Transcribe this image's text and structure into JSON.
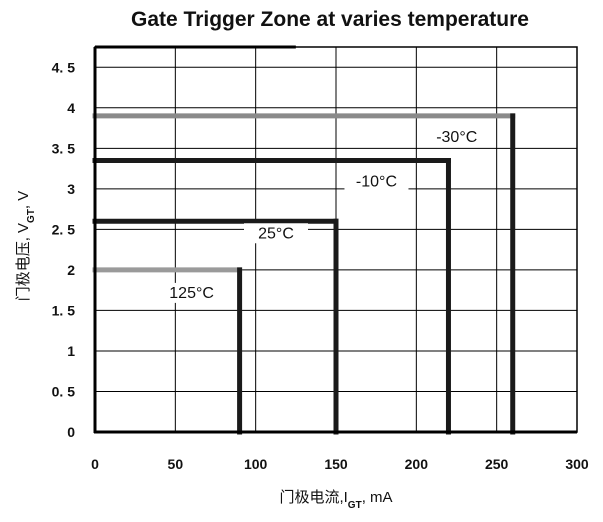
{
  "chart_data": {
    "type": "line",
    "title": "Gate Trigger Zone at varies temperature",
    "xlabel": "门极电流,I_GT,  mA",
    "xlabel_parts": {
      "prefix": "门极电流,I",
      "sub": "GT",
      "suffix": ",  mA"
    },
    "ylabel": "门极电压, V_GT,  V",
    "ylabel_parts": {
      "prefix": "门极电压, V",
      "sub": "GT",
      "suffix": ",  V"
    },
    "xlim": [
      0,
      300
    ],
    "ylim": [
      0,
      4.75
    ],
    "x_ticks": [
      0,
      50,
      100,
      150,
      200,
      250,
      300
    ],
    "x_tick_labels": [
      "0",
      "50",
      "100",
      "150",
      "200",
      "250",
      "300"
    ],
    "y_ticks": [
      0,
      0.5,
      1,
      1.5,
      2,
      2.5,
      3,
      3.5,
      4,
      4.5
    ],
    "y_tick_labels": [
      "0",
      "0. 5",
      "1",
      "1. 5",
      "2",
      "2. 5",
      "3",
      "3. 5",
      "4",
      "4. 5"
    ],
    "grid": true,
    "legend": "none",
    "series": [
      {
        "name": "125°C",
        "igt_max": 90,
        "vgt_max": 2.0,
        "points": [
          [
            0,
            2.0
          ],
          [
            90,
            2.0
          ],
          [
            90,
            0
          ]
        ],
        "color": "#1a1a1a",
        "top_color": "#9a9a9a"
      },
      {
        "name": "25°C",
        "igt_max": 150,
        "vgt_max": 2.6,
        "points": [
          [
            0,
            2.6
          ],
          [
            150,
            2.6
          ],
          [
            150,
            0
          ]
        ],
        "color": "#1a1a1a",
        "top_color": "#1a1a1a"
      },
      {
        "name": "-10°C",
        "igt_max": 220,
        "vgt_max": 3.35,
        "points": [
          [
            0,
            3.35
          ],
          [
            220,
            3.35
          ],
          [
            220,
            0
          ]
        ],
        "color": "#1a1a1a",
        "top_color": "#1a1a1a"
      },
      {
        "name": "-30°C",
        "igt_max": 260,
        "vgt_max": 3.9,
        "points": [
          [
            0,
            3.9
          ],
          [
            260,
            3.9
          ],
          [
            260,
            0
          ]
        ],
        "color": "#1a1a1a",
        "top_color": "#8a8a8a"
      }
    ]
  }
}
